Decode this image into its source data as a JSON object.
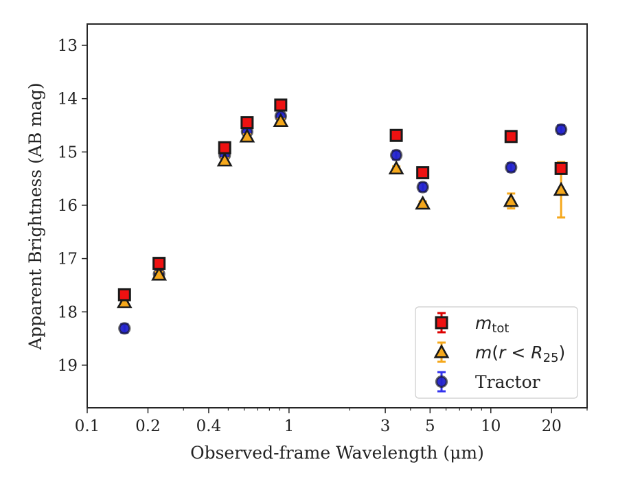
{
  "chart_data": {
    "type": "scatter",
    "title": "",
    "xlabel": "Observed-frame Wavelength (μm)",
    "ylabel": "Apparent Brightness (AB mag)",
    "xscale": "log",
    "xlim": [
      0.1,
      30
    ],
    "ylim": [
      19.8,
      12.6
    ],
    "y_inverted": true,
    "xticks": [
      {
        "value": 0.1,
        "label": "0.1"
      },
      {
        "value": 0.2,
        "label": "0.2"
      },
      {
        "value": 0.4,
        "label": "0.4"
      },
      {
        "value": 1,
        "label": "1"
      },
      {
        "value": 3,
        "label": "3"
      },
      {
        "value": 5,
        "label": "5"
      },
      {
        "value": 10,
        "label": "10"
      },
      {
        "value": 20,
        "label": "20"
      }
    ],
    "yticks": [
      {
        "value": 13,
        "label": "13"
      },
      {
        "value": 14,
        "label": "14"
      },
      {
        "value": 15,
        "label": "15"
      },
      {
        "value": 16,
        "label": "16"
      },
      {
        "value": 17,
        "label": "17"
      },
      {
        "value": 18,
        "label": "18"
      },
      {
        "value": 19,
        "label": "19"
      }
    ],
    "grid": false,
    "legend_position": "bottom-right",
    "series": [
      {
        "name": "m_tot",
        "legend_main": "m",
        "legend_sub": "tot",
        "marker": "square",
        "color": "#ee1111",
        "errcolor": "#dd0000",
        "points": [
          {
            "x": 0.153,
            "y": 17.68,
            "err": 0.05
          },
          {
            "x": 0.227,
            "y": 17.09,
            "err": 0.05
          },
          {
            "x": 0.48,
            "y": 14.92,
            "err": 0.04
          },
          {
            "x": 0.62,
            "y": 14.45,
            "err": 0.04
          },
          {
            "x": 0.91,
            "y": 14.12,
            "err": 0.04
          },
          {
            "x": 3.4,
            "y": 14.69,
            "err": 0.04
          },
          {
            "x": 4.6,
            "y": 15.39,
            "err": 0.04
          },
          {
            "x": 12.6,
            "y": 14.71,
            "err": 0.04
          },
          {
            "x": 22.3,
            "y": 15.31,
            "err": 0.07
          }
        ]
      },
      {
        "name": "m(r < R25)",
        "legend_main": "m",
        "legend_sub": "",
        "marker": "triangle",
        "color": "#f5a81c",
        "errcolor": "#f5a81c",
        "points": [
          {
            "x": 0.153,
            "y": 17.82,
            "err": 0.05
          },
          {
            "x": 0.227,
            "y": 17.3,
            "err": 0.05
          },
          {
            "x": 0.48,
            "y": 15.16,
            "err": 0.04
          },
          {
            "x": 0.62,
            "y": 14.71,
            "err": 0.04
          },
          {
            "x": 0.91,
            "y": 14.42,
            "err": 0.04
          },
          {
            "x": 3.4,
            "y": 15.31,
            "err": 0.04
          },
          {
            "x": 4.6,
            "y": 15.97,
            "err": 0.04
          },
          {
            "x": 12.6,
            "y": 15.92,
            "err": 0.14
          },
          {
            "x": 22.3,
            "y": 15.71,
            "err": 0.52
          }
        ]
      },
      {
        "name": "Tractor",
        "legend_main": "Tractor",
        "legend_sub": "",
        "marker": "circle",
        "color": "#2222cc",
        "errcolor": "#3333ee",
        "points": [
          {
            "x": 0.153,
            "y": 18.31,
            "err": 0.08
          },
          {
            "x": 0.227,
            "y": 17.29,
            "err": 0.07
          },
          {
            "x": 0.48,
            "y": 15.06,
            "err": 0.05
          },
          {
            "x": 0.62,
            "y": 14.62,
            "err": 0.05
          },
          {
            "x": 0.91,
            "y": 14.33,
            "err": 0.05
          },
          {
            "x": 3.4,
            "y": 15.06,
            "err": 0.08
          },
          {
            "x": 4.6,
            "y": 15.66,
            "err": 0.08
          },
          {
            "x": 12.6,
            "y": 15.29,
            "err": 0.08
          },
          {
            "x": 22.3,
            "y": 14.58,
            "err": 0.08
          }
        ]
      }
    ]
  }
}
